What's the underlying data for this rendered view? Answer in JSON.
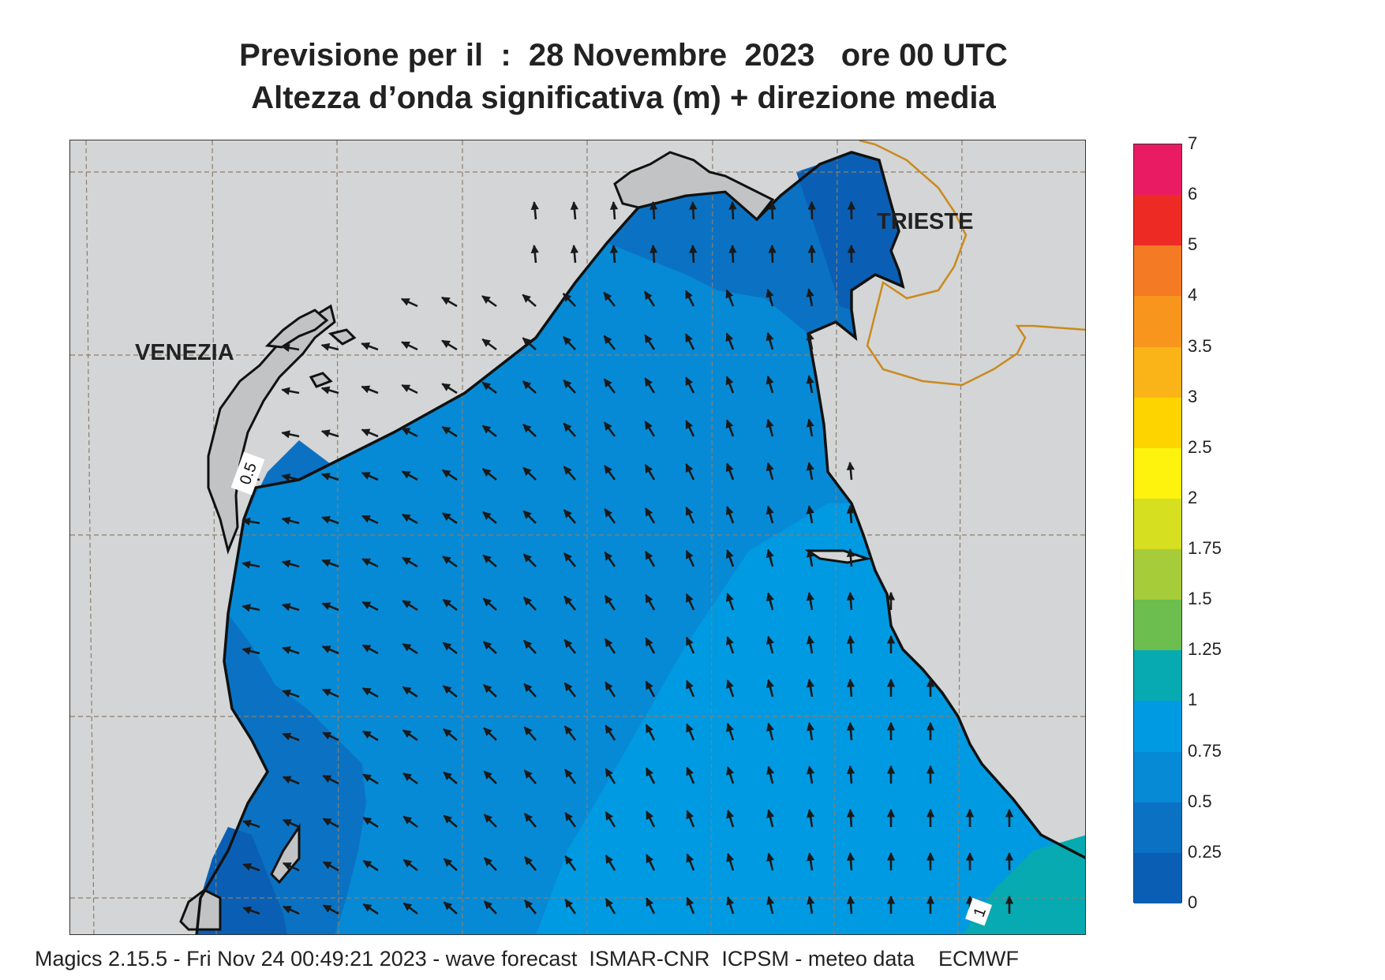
{
  "title_line1": "Previsione per il  :  28 Novembre  2023   ore 00 UTC",
  "title_line2": "Altezza d’onda significativa (m) + direzione media",
  "cities": {
    "venezia": "VENEZIA",
    "trieste": "TRIESTE"
  },
  "contour_labels": [
    "0.5",
    "1"
  ],
  "legend": {
    "ticks": [
      "0",
      "0.25",
      "0.5",
      "0.75",
      "1",
      "1.25",
      "1.5",
      "1.75",
      "2",
      "2.5",
      "3",
      "3.5",
      "4",
      "5",
      "6",
      "7"
    ],
    "colors": [
      "#0a5fb4",
      "#0b72c3",
      "#078ad6",
      "#009ae2",
      "#06aab0",
      "#6cbe4e",
      "#a7cc3a",
      "#d6df20",
      "#fdf30d",
      "#fdd400",
      "#fbb417",
      "#f8951d",
      "#f47a24",
      "#ee2a24",
      "#e91b63"
    ]
  },
  "colors": {
    "land": "#d4d5d6",
    "sea_low": "#0a5fb4",
    "sea_mid": "#0b72c3",
    "sea_main": "#078ad6",
    "sea_high": "#009ae2",
    "sea_top": "#06aab0",
    "border": "#c98a1e",
    "arrow": "#1a1a1a"
  },
  "footer": "Magics 2.15.5 - Fri Nov 24 00:49:21 2023 - wave forecast  ISMAR-CNR  ICPSM - meteo data    ECMWF"
}
